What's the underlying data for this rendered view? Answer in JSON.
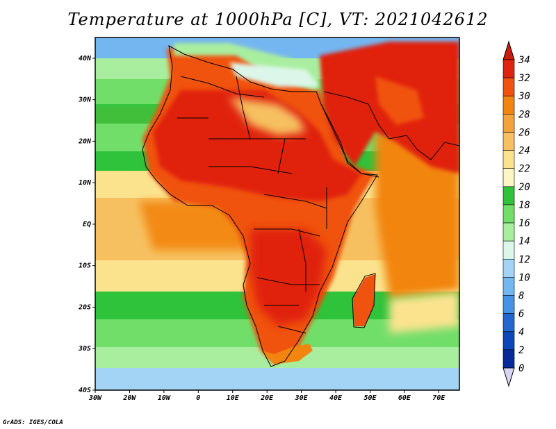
{
  "title": "Temperature at 1000hPa [C], VT: 2021042612",
  "credit": "GrADS: IGES/COLA",
  "map": {
    "variable": "Temperature at 1000hPa",
    "units": "C",
    "lon_range": [
      -30,
      76
    ],
    "lat_range": [
      -40,
      45
    ],
    "lon_ticks": [
      "30W",
      "20W",
      "10W",
      "0",
      "10E",
      "20E",
      "30E",
      "40E",
      "50E",
      "60E",
      "70E"
    ],
    "lat_ticks": [
      "40N",
      "30N",
      "20N",
      "10N",
      "EQ",
      "10S",
      "20S",
      "30S",
      "40S"
    ]
  },
  "colorbar": {
    "labels": [
      "34",
      "32",
      "30",
      "28",
      "26",
      "24",
      "22",
      "20",
      "18",
      "16",
      "14",
      "12",
      "10",
      "8",
      "6",
      "4",
      "2",
      "0"
    ],
    "colors": [
      "#e02210",
      "#f0520f",
      "#f2850f",
      "#f4a23a",
      "#f6c060",
      "#fbe38e",
      "#fbf6c4",
      "#2fc23b",
      "#72de6a",
      "#a9ee9e",
      "#dcf6ea",
      "#a4d4f5",
      "#74b6f0",
      "#4592e6",
      "#2467d0",
      "#0e45b8",
      "#07299a",
      "#0a1a6e"
    ],
    "over_color": "#c81e0c",
    "under_color": "#d6d6f2"
  },
  "colors": {
    "land_outline": "#000000",
    "frame": "#000000"
  }
}
